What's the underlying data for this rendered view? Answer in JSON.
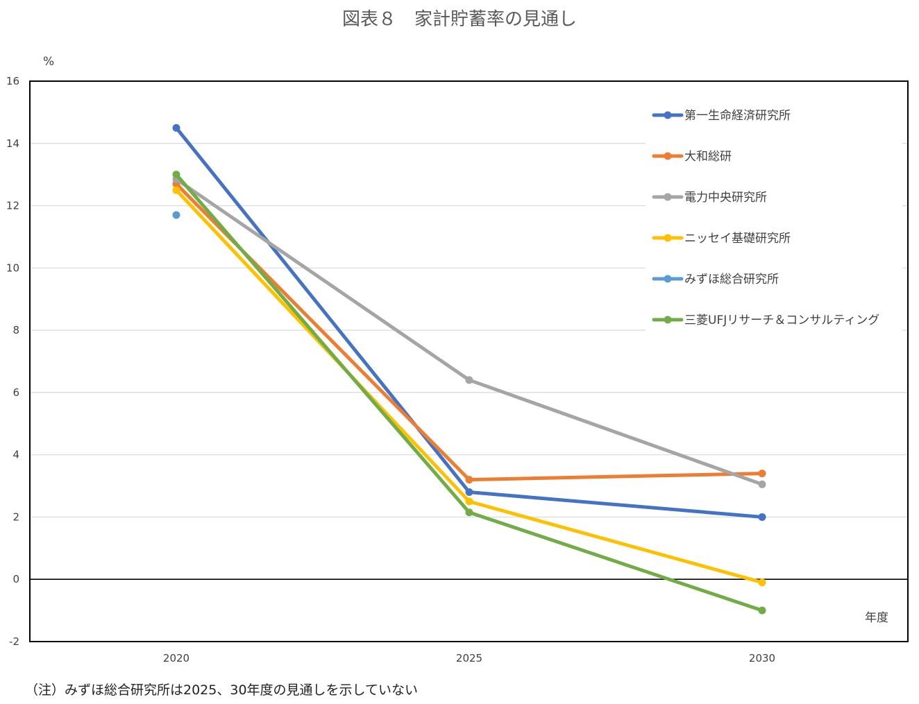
{
  "chart_data": {
    "type": "line",
    "title": "図表８　家計貯蓄率の見通し",
    "ylabel": "%",
    "xlabel": "年度",
    "x": [
      2020,
      2025,
      2030
    ],
    "ylim": [
      -2,
      16
    ],
    "yticks": [
      16,
      14,
      12,
      10,
      8,
      6,
      4,
      2,
      0,
      -2
    ],
    "grid": true,
    "legend_position": "top-right",
    "series": [
      {
        "name": "第一生命経済研究所",
        "color": "#4472C4",
        "values": [
          14.5,
          2.8,
          2.0
        ]
      },
      {
        "name": "大和総研",
        "color": "#ED7D31",
        "values": [
          12.7,
          3.2,
          3.4
        ]
      },
      {
        "name": "電力中央研究所",
        "color": "#A5A5A5",
        "values": [
          12.85,
          6.4,
          3.05
        ]
      },
      {
        "name": "ニッセイ基礎研究所",
        "color": "#FFC000",
        "values": [
          12.5,
          2.5,
          -0.1
        ]
      },
      {
        "name": "みずほ総合研究所",
        "color": "#5B9BD5",
        "values": [
          11.7,
          null,
          null
        ]
      },
      {
        "name": "三菱UFJリサーチ＆コンサルティング",
        "color": "#70AD47",
        "values": [
          13.0,
          2.15,
          -1.0
        ]
      }
    ]
  },
  "note": "（注）みずほ総合研究所は2025、30年度の見通しを示していない"
}
